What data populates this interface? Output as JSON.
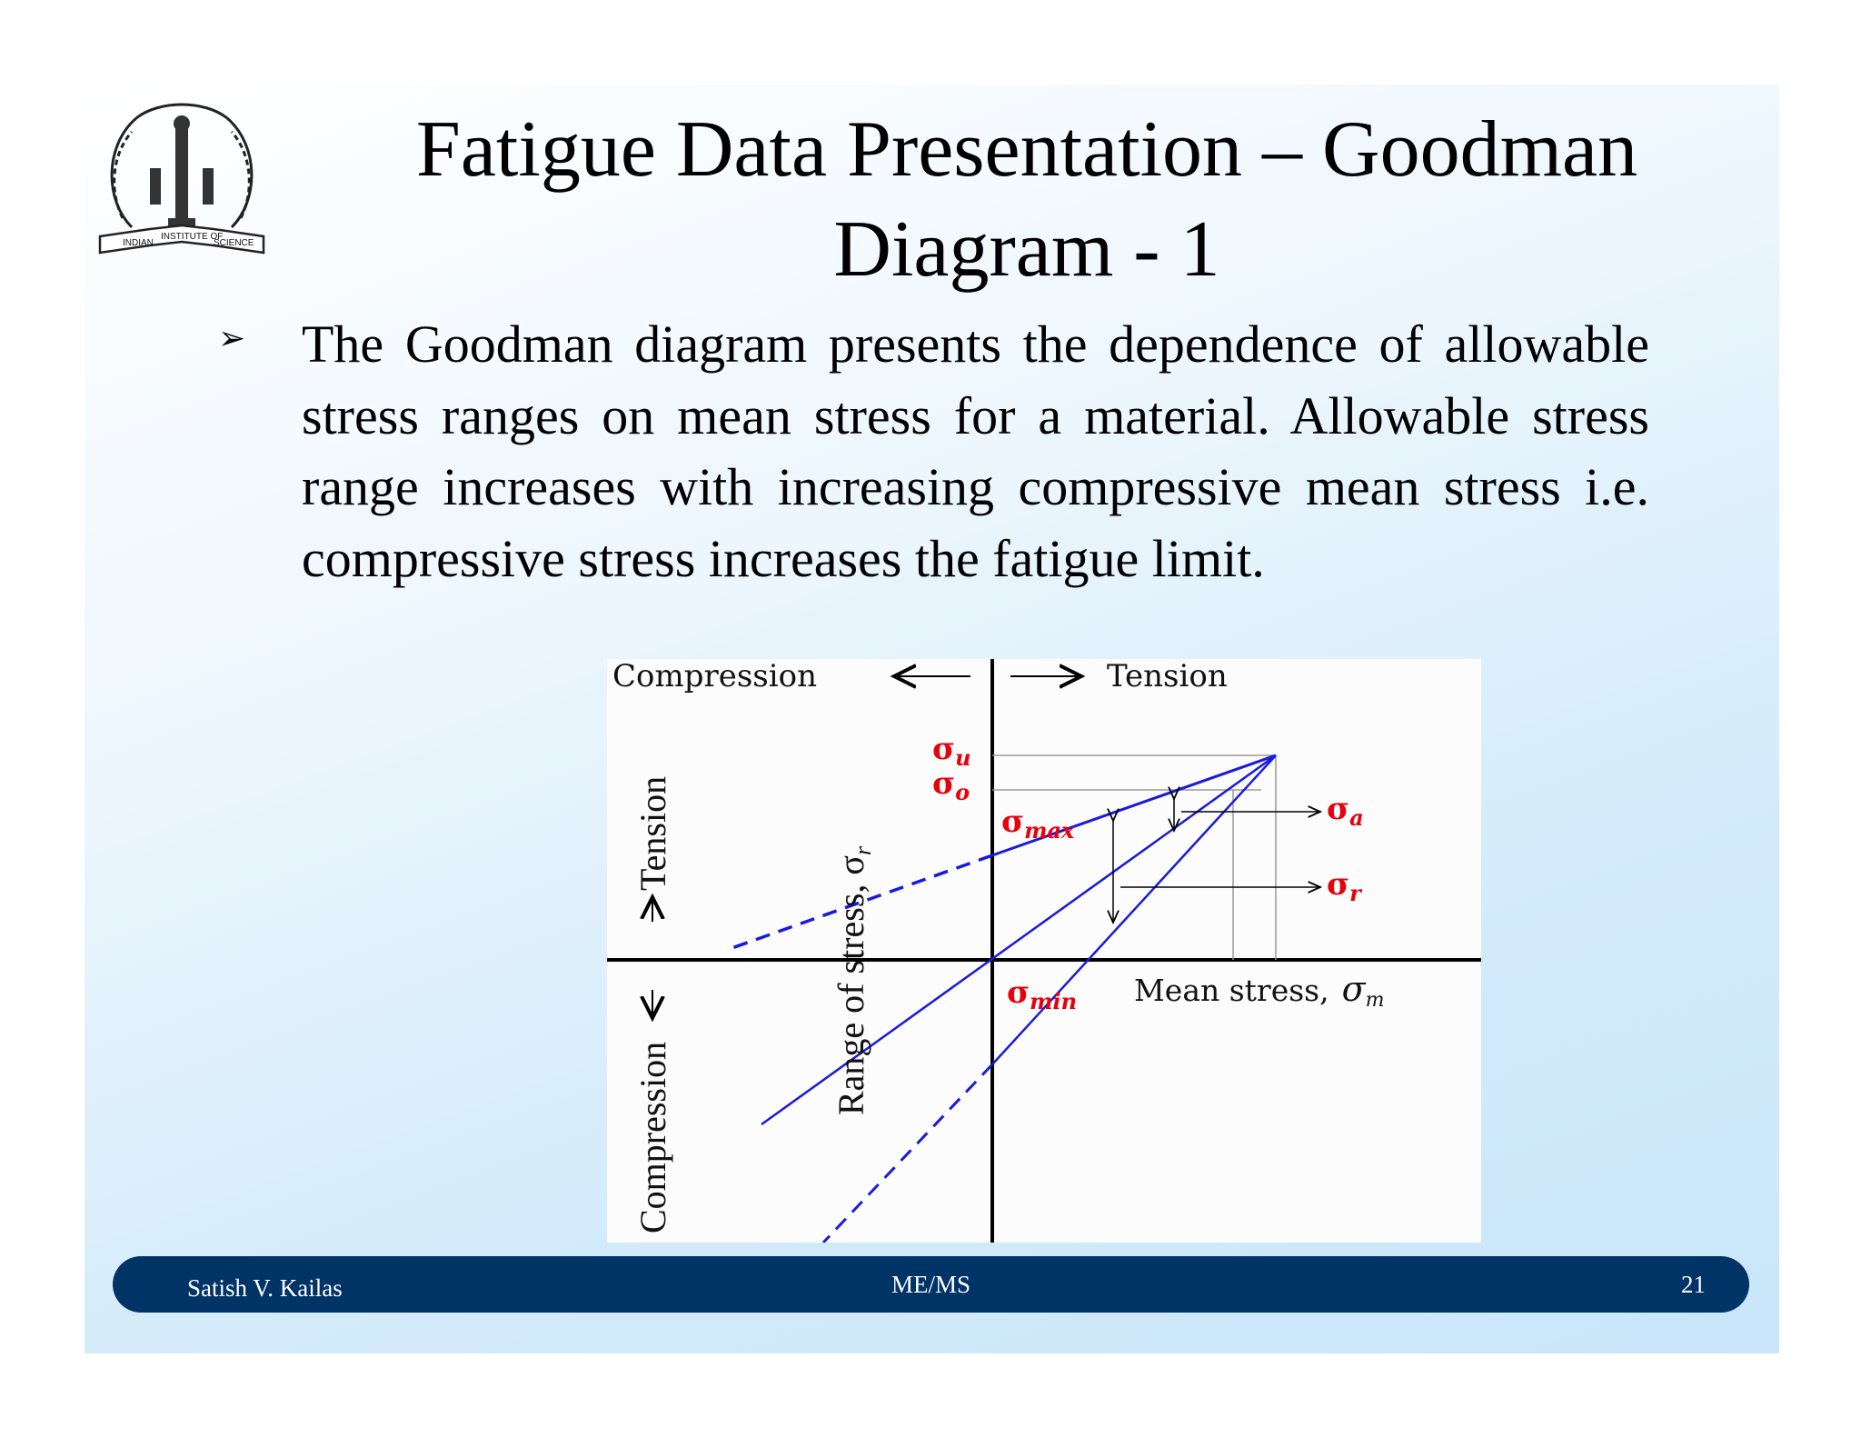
{
  "slide": {
    "title": "Fatigue Data Presentation – Goodman Diagram - 1",
    "bullet_marker": "➢",
    "bullet_text": "The Goodman diagram presents the dependence of allowable stress ranges on mean stress for a material. Allowable stress range increases with increasing compressive mean stress i.e. compressive stress increases the fatigue limit.",
    "logo_text": {
      "left": "INDIAN",
      "center": "INSTITUTE OF",
      "right": "SCIENCE"
    }
  },
  "diagram": {
    "top_left_label": "Compression",
    "top_right_label": "Tension",
    "left_upper_label": "Tension",
    "left_lower_label": "Compression",
    "y_axis_label": "Range of stress, σ",
    "y_axis_subscript": "r",
    "x_axis_label": "Mean stress,",
    "x_axis_symbol": "σ",
    "x_axis_subscript": "m",
    "symbols": {
      "sigma_u": {
        "base": "σ",
        "sub": "u"
      },
      "sigma_o": {
        "base": "σ",
        "sub": "o"
      },
      "sigma_max": {
        "base": "σ",
        "sub": "max"
      },
      "sigma_min": {
        "base": "σ",
        "sub": "min"
      },
      "sigma_a": {
        "base": "σ",
        "sub": "a"
      },
      "sigma_r": {
        "base": "σ",
        "sub": "r"
      }
    },
    "colors": {
      "line": "#1a1adb",
      "label": "#e8000b",
      "axis": "#000000"
    }
  },
  "footer": {
    "author": "Satish V. Kailas",
    "center": "ME/MS",
    "page": "21"
  }
}
